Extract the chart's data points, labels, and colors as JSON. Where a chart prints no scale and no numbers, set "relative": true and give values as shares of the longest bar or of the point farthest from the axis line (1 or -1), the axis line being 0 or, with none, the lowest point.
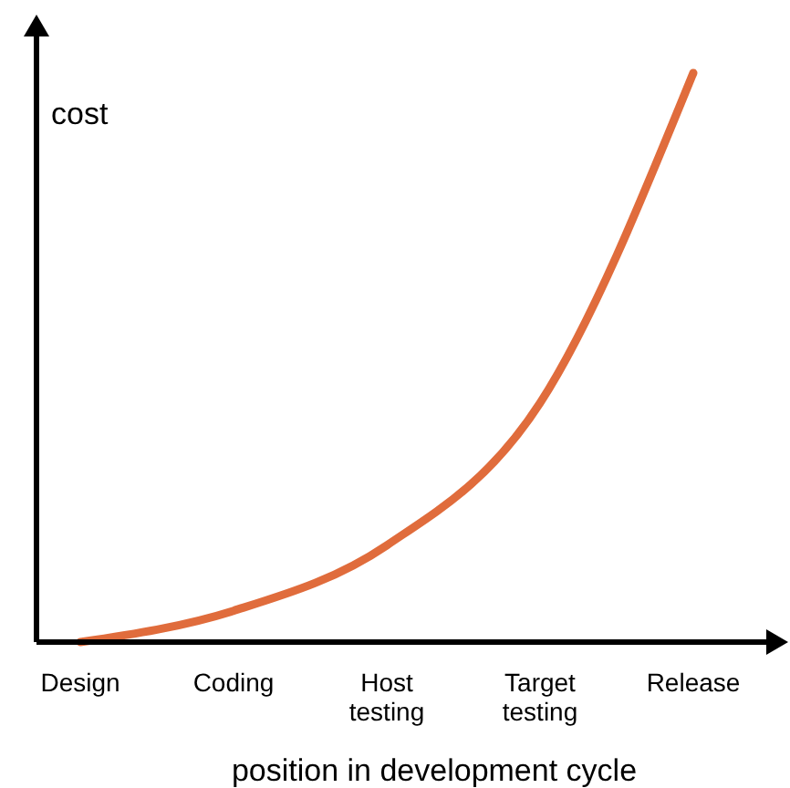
{
  "chart_data": {
    "type": "line",
    "relative": true,
    "xlabel": "position in development cycle",
    "ylabel": "cost",
    "categories": [
      "Design",
      "Coding",
      "Host testing",
      "Target testing",
      "Release"
    ],
    "series": [
      {
        "color": "#e06c3c",
        "values": [
          0,
          0.055,
          0.17,
          0.42,
          1
        ]
      }
    ]
  }
}
